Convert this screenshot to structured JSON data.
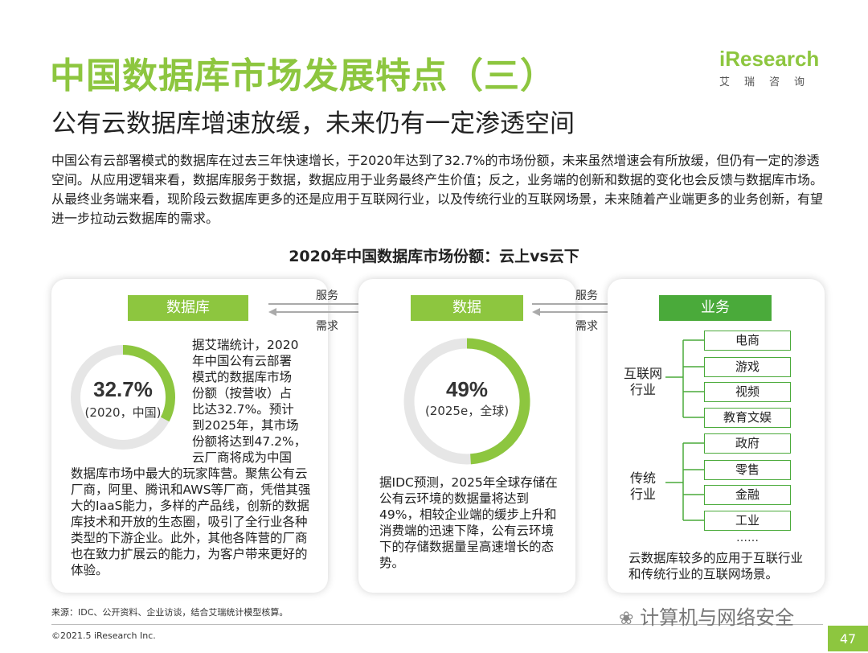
{
  "header": {
    "title": "中国数据库市场发展特点（三）",
    "subtitle": "公有云数据库增速放缓，未来仍有一定渗透空间",
    "logo_text": "iResearch",
    "logo_sub": "艾瑞咨询"
  },
  "intro": "中国公有云部署模式的数据库在过去三年快速增长，于2020年达到了32.7%的市场份额，未来虽然增速会有所放缓，但仍有一定的渗透空间。从应用逻辑来看，数据库服务于数据，数据应用于业务最终产生价值；反之，业务端的创新和数据的变化也会反馈与数据库市场。从最终业务端来看，现阶段云数据库更多的还是应用于互联网行业，以及传统行业的互联网场景，未来随着产业端更多的业务创新，有望进一步拉动云数据库的需求。",
  "chart_title": "2020年中国数据库市场份额：云上vs云下",
  "panels": {
    "left": {
      "header": "数据库",
      "ring_value": "32.7%",
      "ring_fraction": 0.327,
      "ring_caption": "(2020，中国)",
      "text_lines": [
        "据艾瑞统计，2020",
        "年中国公有云部署",
        "模式的数据库市场",
        "份额（按营收）占",
        "比达32.7%。预计",
        "到2025年，其市场",
        "份额将达到47.2%，",
        "云厂商将成为中国"
      ],
      "text_bottom": "数据库市场中最大的玩家阵营。聚焦公有云厂商，阿里、腾讯和AWS等厂商，凭借其强大的IaaS能力，多样的产品线，创新的数据库技术和开放的生态圈，吸引了全行业各种类型的下游企业。此外，其他各阵营的厂商也在致力扩展云的能力，为客户带来更好的体验。"
    },
    "middle": {
      "header": "数据",
      "ring_value": "49%",
      "ring_fraction": 0.49,
      "ring_caption": "(2025e，全球)",
      "text": "据IDC预测，2025年全球存储在公有云环境的数据量将达到49%，相较企业端的缓步上升和消费端的迅速下降，公有云环境下的存储数据量呈高速增长的态势。"
    },
    "right": {
      "header": "业务",
      "group1_label": "互联网\n行业",
      "group1_items": [
        "电商",
        "游戏",
        "视频",
        "教育文娱"
      ],
      "group2_label": "传统\n行业",
      "group2_items": [
        "政府",
        "零售",
        "金融",
        "工业"
      ],
      "ellipsis": "……",
      "text": "云数据库较多的应用于互联行业和传统行业的互联网场景。"
    }
  },
  "arrows": {
    "a1_top": "服务",
    "a1_bottom": "需求",
    "a2_top": "服务",
    "a2_bottom": "需求"
  },
  "footer": {
    "source": "来源：IDC、公开资料、企业访谈，结合艾瑞统计模型核算。",
    "copyright": "©2021.5 iResearch Inc.",
    "watermark": "计算机与网络安全",
    "page": "47"
  },
  "colors": {
    "accent": "#8dc63f",
    "accent_dark": "#4aaa3a",
    "ring_track": "#e6e6e6"
  }
}
